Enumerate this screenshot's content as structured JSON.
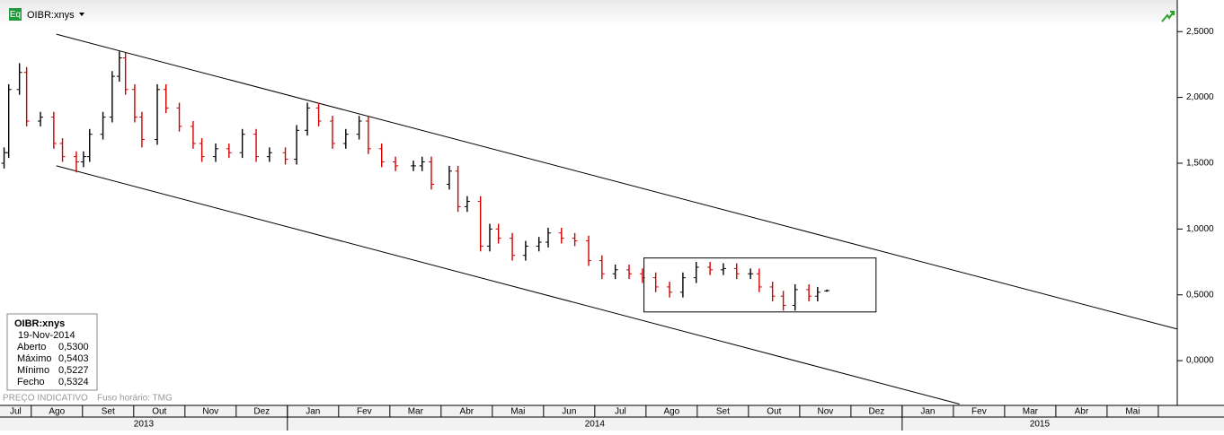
{
  "chart_data": {
    "type": "ohlc",
    "title": "OIBR:xnys",
    "badge": "Eq",
    "footnote": "PREÇO INDICATIVO",
    "timezone": "Fuso horário: TMG",
    "up_color": "#000000",
    "down_color": "#d00000",
    "xlim": [
      0.39,
      23.37
    ],
    "ylim": [
      -0.34,
      2.74
    ],
    "yticks": [
      {
        "value": 0,
        "label": "0,0000"
      },
      {
        "value": 0.5,
        "label": "0,5000"
      },
      {
        "value": 1,
        "label": "1,0000"
      },
      {
        "value": 1.5,
        "label": "1,5000"
      },
      {
        "value": 2,
        "label": "2,0000"
      },
      {
        "value": 2.5,
        "label": "2,5000"
      }
    ],
    "xticks": [
      {
        "value": 0,
        "label": "Jul"
      },
      {
        "value": 1,
        "label": "Ago"
      },
      {
        "value": 2,
        "label": "Set"
      },
      {
        "value": 3,
        "label": "Out"
      },
      {
        "value": 4,
        "label": "Nov"
      },
      {
        "value": 5,
        "label": "Dez"
      },
      {
        "value": 6,
        "label": "Jan"
      },
      {
        "value": 7,
        "label": "Fev"
      },
      {
        "value": 8,
        "label": "Mar"
      },
      {
        "value": 9,
        "label": "Abr"
      },
      {
        "value": 10,
        "label": "Mai"
      },
      {
        "value": 11,
        "label": "Jun"
      },
      {
        "value": 12,
        "label": "Jul"
      },
      {
        "value": 13,
        "label": "Ago"
      },
      {
        "value": 14,
        "label": "Set"
      },
      {
        "value": 15,
        "label": "Out"
      },
      {
        "value": 16,
        "label": "Nov"
      },
      {
        "value": 17,
        "label": "Dez"
      },
      {
        "value": 18,
        "label": "Jan"
      },
      {
        "value": 19,
        "label": "Fev"
      },
      {
        "value": 20,
        "label": "Mar"
      },
      {
        "value": 21,
        "label": "Abr"
      },
      {
        "value": 22,
        "label": "Mai"
      }
    ],
    "year_ticks": [
      {
        "value": 0,
        "label": "2013"
      },
      {
        "value": 6,
        "label": "2014"
      },
      {
        "value": 18,
        "label": "2015"
      }
    ],
    "x": [
      0.47,
      0.56,
      0.77,
      0.91,
      1.18,
      1.44,
      1.61,
      1.88,
      2.02,
      2.14,
      2.4,
      2.58,
      2.72,
      2.84,
      3.02,
      3.16,
      3.46,
      3.63,
      3.89,
      4.16,
      4.33,
      4.6,
      4.86,
      5.12,
      5.39,
      5.65,
      5.96,
      6.18,
      6.39,
      6.61,
      6.88,
      7.14,
      7.4,
      7.58,
      7.84,
      8.11,
      8.46,
      8.63,
      8.81,
      9.16,
      9.33,
      9.51,
      9.77,
      9.95,
      10.12,
      10.39,
      10.65,
      10.91,
      11.09,
      11.35,
      11.61,
      11.88,
      12.14,
      12.4,
      12.67,
      12.93,
      13.19,
      13.46,
      13.72,
      13.98,
      14.25,
      14.51,
      14.77,
      15.04,
      15.21,
      15.47,
      15.68,
      15.91,
      16.18,
      16.35,
      16.53
    ],
    "open": [
      1.5,
      1.58,
      2.06,
      2.19,
      1.82,
      1.85,
      1.65,
      1.55,
      1.51,
      1.55,
      1.72,
      1.85,
      2.16,
      2.3,
      2.06,
      1.85,
      1.68,
      2.06,
      1.92,
      1.78,
      1.65,
      1.55,
      1.61,
      1.58,
      1.72,
      1.55,
      1.58,
      1.53,
      1.75,
      1.92,
      1.82,
      1.65,
      1.72,
      1.82,
      1.61,
      1.51,
      1.48,
      1.48,
      1.51,
      1.34,
      1.44,
      1.17,
      1.21,
      0.87,
      1.0,
      0.93,
      0.8,
      0.87,
      0.9,
      0.97,
      0.93,
      0.91,
      0.76,
      0.66,
      0.69,
      0.66,
      0.63,
      0.56,
      0.52,
      0.63,
      0.71,
      0.69,
      0.7,
      0.66,
      0.66,
      0.56,
      0.49,
      0.42,
      0.54,
      0.49,
      0.53
    ],
    "high": [
      1.62,
      2.1,
      2.26,
      2.23,
      1.89,
      1.89,
      1.69,
      1.59,
      1.59,
      1.76,
      1.89,
      2.2,
      2.35,
      2.34,
      2.1,
      1.89,
      2.1,
      2.1,
      1.96,
      1.82,
      1.69,
      1.65,
      1.65,
      1.76,
      1.76,
      1.62,
      1.62,
      1.79,
      1.96,
      1.96,
      1.86,
      1.76,
      1.86,
      1.86,
      1.65,
      1.55,
      1.52,
      1.55,
      1.55,
      1.48,
      1.48,
      1.25,
      1.25,
      1.04,
      1.04,
      0.97,
      0.91,
      0.94,
      1.01,
      1.01,
      0.97,
      0.95,
      0.8,
      0.73,
      0.73,
      0.7,
      0.67,
      0.6,
      0.67,
      0.75,
      0.75,
      0.74,
      0.74,
      0.7,
      0.7,
      0.6,
      0.53,
      0.58,
      0.58,
      0.56,
      0.5403
    ],
    "low": [
      1.46,
      1.54,
      2.02,
      1.78,
      1.78,
      1.61,
      1.51,
      1.43,
      1.47,
      1.51,
      1.68,
      1.81,
      2.12,
      2.02,
      1.81,
      1.62,
      1.64,
      1.88,
      1.74,
      1.61,
      1.51,
      1.51,
      1.54,
      1.54,
      1.51,
      1.51,
      1.49,
      1.49,
      1.71,
      1.78,
      1.61,
      1.61,
      1.68,
      1.57,
      1.47,
      1.44,
      1.44,
      1.44,
      1.3,
      1.3,
      1.13,
      1.13,
      0.83,
      0.83,
      0.89,
      0.76,
      0.76,
      0.83,
      0.86,
      0.89,
      0.87,
      0.72,
      0.62,
      0.62,
      0.62,
      0.59,
      0.52,
      0.48,
      0.48,
      0.59,
      0.65,
      0.65,
      0.62,
      0.62,
      0.52,
      0.45,
      0.38,
      0.38,
      0.45,
      0.45,
      0.5227
    ],
    "close": [
      1.58,
      2.06,
      2.19,
      1.82,
      1.85,
      1.65,
      1.55,
      1.51,
      1.55,
      1.72,
      1.85,
      2.16,
      2.3,
      2.06,
      1.85,
      1.68,
      2.06,
      1.92,
      1.78,
      1.65,
      1.55,
      1.61,
      1.58,
      1.72,
      1.55,
      1.58,
      1.53,
      1.75,
      1.92,
      1.82,
      1.65,
      1.72,
      1.82,
      1.61,
      1.51,
      1.48,
      1.48,
      1.51,
      1.34,
      1.44,
      1.17,
      1.21,
      0.87,
      1.0,
      0.93,
      0.8,
      0.87,
      0.9,
      0.97,
      0.93,
      0.91,
      0.76,
      0.66,
      0.69,
      0.66,
      0.63,
      0.56,
      0.52,
      0.63,
      0.71,
      0.69,
      0.7,
      0.66,
      0.66,
      0.56,
      0.49,
      0.42,
      0.54,
      0.49,
      0.52,
      0.5324
    ],
    "trendlines": [
      {
        "x": [
          1.49,
          23.37
        ],
        "y": [
          2.48,
          0.24
        ]
      },
      {
        "x": [
          1.49,
          19.12
        ],
        "y": [
          1.48,
          -0.33
        ]
      }
    ],
    "highlight_box": {
      "x": [
        12.96,
        17.49
      ],
      "y": [
        0.78,
        0.37
      ]
    },
    "info_box": {
      "title": "OIBR:xnys",
      "date": "19-Nov-2014",
      "rows": [
        [
          "Aberto",
          "0,5300"
        ],
        [
          "Máximo",
          "0,5403"
        ],
        [
          "Mínimo",
          "0,5227"
        ],
        [
          "Fecho",
          "0,5324"
        ]
      ]
    }
  }
}
